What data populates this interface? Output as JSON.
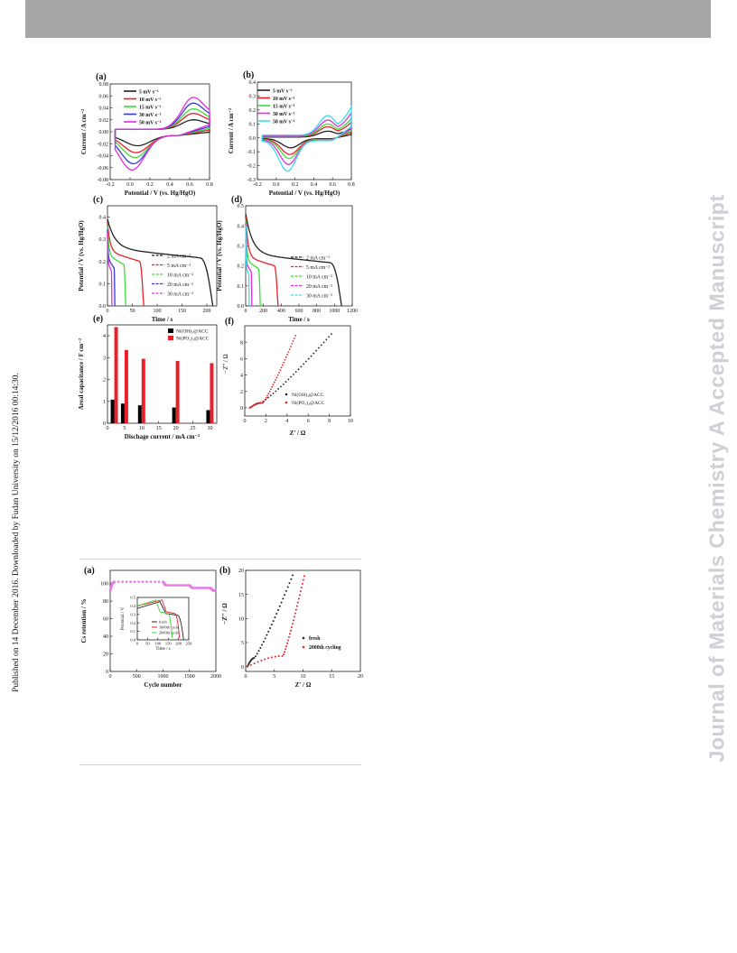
{
  "header": {
    "bar_color": "#a6a6a6"
  },
  "side_note": "Published on 14 December 2016. Downloaded by Fudan University on 15/12/2016 00:14:30.",
  "watermark": "Journal of Materials Chemistry A Accepted Manuscript",
  "figure1": {
    "panel_labels": [
      "(a)",
      "(b)",
      "(c)",
      "(d)",
      "(e)",
      "(f)"
    ],
    "cv_legend": [
      "5 mV s⁻¹",
      "10 mV s⁻¹",
      "15 mV s⁻¹",
      "30 mV s⁻¹",
      "50 mV s⁻¹"
    ],
    "gcd_legend": [
      "2 mA cm⁻²",
      "5 mA cm⁻²",
      "10 mA cm⁻²",
      "20 mA cm⁻²",
      "30 mA cm⁻²"
    ],
    "xlabel_cv": "Potential / V (vs. Hg/HgO)",
    "ylabel_cv": "Current / A cm⁻²",
    "xlabel_time": "Time / s",
    "ylabel_potential": "Potential / V (vs. Hg/HgO)",
    "xlabel_discharge": "Dischage current / mA cm⁻²",
    "ylabel_areal": "Areal capacitance / F cm⁻²",
    "xlabel_z": "Z' / Ω",
    "ylabel_z": "−Z'' / Ω",
    "legend_materials": [
      "Ni(OH)₂@ACC",
      "Ni(PO₃)₂@ACC"
    ]
  },
  "figure2": {
    "panel_labels": [
      "(a)",
      "(b)"
    ],
    "xlabel_cycle": "Cycle number",
    "ylabel_retention": "Cs retention / %",
    "inset_legend": [
      "fresh",
      "1000th cycle",
      "2000th cycle"
    ],
    "inset_ylabel": "Potential / V",
    "inset_xlabel": "Time / s",
    "legend_b": [
      "fresh",
      "2000th cycling"
    ],
    "xlabel_z": "Z' / Ω",
    "ylabel_z": "−Z'' / Ω"
  },
  "colors": {
    "black": "#222222",
    "red": "#e8202a",
    "green": "#3cdc3c",
    "blue": "#3a3ad8",
    "magenta": "#e02ce0",
    "cyan": "#3cdcf0",
    "lightblue": "#7fa0f0",
    "pink": "#e87ae8"
  },
  "chart_data": [
    {
      "type": "line",
      "panel": "a",
      "xlim": [
        -0.2,
        0.8
      ],
      "ylim": [
        -0.08,
        0.08
      ],
      "xticks": [
        "-0.2",
        "0.0",
        "0.2",
        "0.4",
        "0.6",
        "0.8"
      ],
      "yticks": [
        "0.08",
        "0.06",
        "0.04",
        "0.02",
        "0.00",
        "-0.02",
        "-0.04",
        "-0.06",
        "-0.08"
      ],
      "series": [
        {
          "name": "5 mV s⁻¹",
          "color": "#222222",
          "amp": 0.3
        },
        {
          "name": "10 mV s⁻¹",
          "color": "#e8202a",
          "amp": 0.5
        },
        {
          "name": "15 mV s⁻¹",
          "color": "#3cdc3c",
          "amp": 0.64
        },
        {
          "name": "30 mV s⁻¹",
          "color": "#3a3ad8",
          "amp": 0.82
        },
        {
          "name": "50 mV s⁻¹",
          "color": "#e02ce0",
          "amp": 1.0
        }
      ]
    },
    {
      "type": "line",
      "panel": "b",
      "xlim": [
        -0.2,
        0.8
      ],
      "ylim": [
        -0.3,
        0.4
      ],
      "xticks": [
        "-0.2",
        "0.0",
        "0.2",
        "0.4",
        "0.6",
        "0.8"
      ],
      "yticks": [
        "0.4",
        "0.3",
        "0.2",
        "0.1",
        "0.0",
        "-0.1",
        "-0.2",
        "-0.3"
      ],
      "series": [
        {
          "name": "5 mV s⁻¹",
          "color": "#222222",
          "amp": 0.3
        },
        {
          "name": "10 mV s⁻¹",
          "color": "#e8202a",
          "amp": 0.5
        },
        {
          "name": "15 mV s⁻¹",
          "color": "#3cdc3c",
          "amp": 0.62
        },
        {
          "name": "30 mV s⁻¹",
          "color": "#e02ce0",
          "amp": 0.8
        },
        {
          "name": "50 mV s⁻¹",
          "color": "#3cdcf0",
          "amp": 1.0
        }
      ]
    },
    {
      "type": "line",
      "panel": "c",
      "xlim": [
        0,
        220
      ],
      "ylim": [
        0,
        0.45
      ],
      "xticks": [
        "0",
        "50",
        "100",
        "150",
        "200"
      ],
      "yticks": [
        "0.4",
        "0.3",
        "0.2",
        "0.1",
        "0.0"
      ],
      "series": [
        {
          "name": "2 mA cm⁻²",
          "color": "#222222",
          "t_end": 212
        },
        {
          "name": "5 mA cm⁻²",
          "color": "#e8202a",
          "t_end": 73
        },
        {
          "name": "10 mA cm⁻²",
          "color": "#3cdc3c",
          "t_end": 37
        },
        {
          "name": "20 mA cm⁻²",
          "color": "#3a3ad8",
          "t_end": 15
        },
        {
          "name": "30 mA cm⁻²",
          "color": "#e02ce0",
          "t_end": 9
        }
      ]
    },
    {
      "type": "line",
      "panel": "d",
      "xlim": [
        0,
        1200
      ],
      "ylim": [
        0,
        0.5
      ],
      "xticks": [
        "0",
        "200",
        "400",
        "600",
        "800",
        "1000",
        "1200"
      ],
      "yticks": [
        "0.5",
        "0.4",
        "0.3",
        "0.2",
        "0.1",
        "0.0"
      ],
      "series": [
        {
          "name": "2 mA cm⁻²",
          "color": "#222222",
          "t_end": 1080
        },
        {
          "name": "5 mA cm⁻²",
          "color": "#e8202a",
          "t_end": 365
        },
        {
          "name": "10 mA cm⁻²",
          "color": "#3cdc3c",
          "t_end": 165
        },
        {
          "name": "20 mA cm⁻²",
          "color": "#e02ce0",
          "t_end": 70
        },
        {
          "name": "30 mA cm⁻²",
          "color": "#3cdcf0",
          "t_end": 40
        }
      ]
    },
    {
      "type": "bar",
      "panel": "e",
      "xlim": [
        0,
        32
      ],
      "ylim": [
        0,
        4.5
      ],
      "xticks": [
        "0",
        "5",
        "10",
        "15",
        "20",
        "25",
        "30"
      ],
      "yticks": [
        "4",
        "3",
        "2",
        "1",
        "0"
      ],
      "categories": [
        2,
        5,
        10,
        20,
        30
      ],
      "series": [
        {
          "name": "Ni(OH)₂@ACC",
          "color": "#000000",
          "values": [
            1.08,
            0.9,
            0.82,
            0.72,
            0.6
          ]
        },
        {
          "name": "Ni(PO₃)₂@ACC",
          "color": "#e8202a",
          "values": [
            4.4,
            3.35,
            2.95,
            2.85,
            2.75
          ]
        }
      ]
    },
    {
      "type": "scatter",
      "panel": "f",
      "xlim": [
        0,
        10
      ],
      "ylim": [
        -1,
        10
      ],
      "xticks": [
        "0",
        "2",
        "4",
        "6",
        "8",
        "10"
      ],
      "yticks": [
        "8",
        "6",
        "4",
        "2",
        "0"
      ],
      "series": [
        {
          "name": "Ni(OH)₂@ACC",
          "color": "#222222",
          "start": [
            0.5,
            0
          ],
          "knee": [
            1.5,
            0.6
          ],
          "end": [
            8.2,
            9.0
          ]
        },
        {
          "name": "Ni(PO₃)₂@ACC",
          "color": "#e8202a",
          "start": [
            0.45,
            0
          ],
          "knee": [
            1.7,
            0.6
          ],
          "end": [
            4.8,
            8.8
          ]
        }
      ]
    },
    {
      "type": "scatter",
      "panel": "2a",
      "xlim": [
        0,
        2000
      ],
      "ylim": [
        0,
        115
      ],
      "xticks": [
        "0",
        "500",
        "1000",
        "1500",
        "2000"
      ],
      "yticks": [
        "100",
        "80",
        "60",
        "40",
        "20",
        "0"
      ],
      "series": [
        {
          "name": "Cs retention",
          "color": "#e87ae8",
          "points": [
            [
              0,
              92
            ],
            [
              40,
              100
            ],
            [
              80,
              102
            ],
            [
              1000,
              102
            ],
            [
              1050,
              98
            ],
            [
              1500,
              98
            ],
            [
              1550,
              95
            ],
            [
              1900,
              95
            ],
            [
              1950,
              92
            ],
            [
              2000,
              92
            ]
          ]
        }
      ]
    },
    {
      "type": "line",
      "panel": "2a-inset",
      "xlim": [
        0,
        250
      ],
      "ylim": [
        0,
        0.5
      ],
      "xticks": [
        "0",
        "50",
        "100",
        "150",
        "200",
        "250"
      ],
      "yticks": [
        "0.5",
        "0.4",
        "0.3",
        "0.2",
        "0.1",
        "0.0"
      ],
      "series": [
        {
          "name": "fresh",
          "color": "#222222"
        },
        {
          "name": "1000th cycle",
          "color": "#e8202a"
        },
        {
          "name": "2000th cycle",
          "color": "#3cdc3c"
        }
      ]
    },
    {
      "type": "scatter",
      "panel": "2b",
      "xlim": [
        0,
        20
      ],
      "ylim": [
        -1,
        20
      ],
      "xticks": [
        "0",
        "5",
        "10",
        "15",
        "20"
      ],
      "yticks": [
        "20",
        "15",
        "10",
        "5",
        "0"
      ],
      "series": [
        {
          "name": "fresh",
          "color": "#222222",
          "start": [
            0.3,
            0
          ],
          "knee": [
            1.5,
            1.8
          ],
          "end": [
            8.2,
            19
          ]
        },
        {
          "name": "2000th cycling",
          "color": "#e8202a",
          "start": [
            0.3,
            0
          ],
          "knee": [
            6.5,
            2.2
          ],
          "end": [
            10.2,
            18.8
          ]
        }
      ]
    }
  ]
}
